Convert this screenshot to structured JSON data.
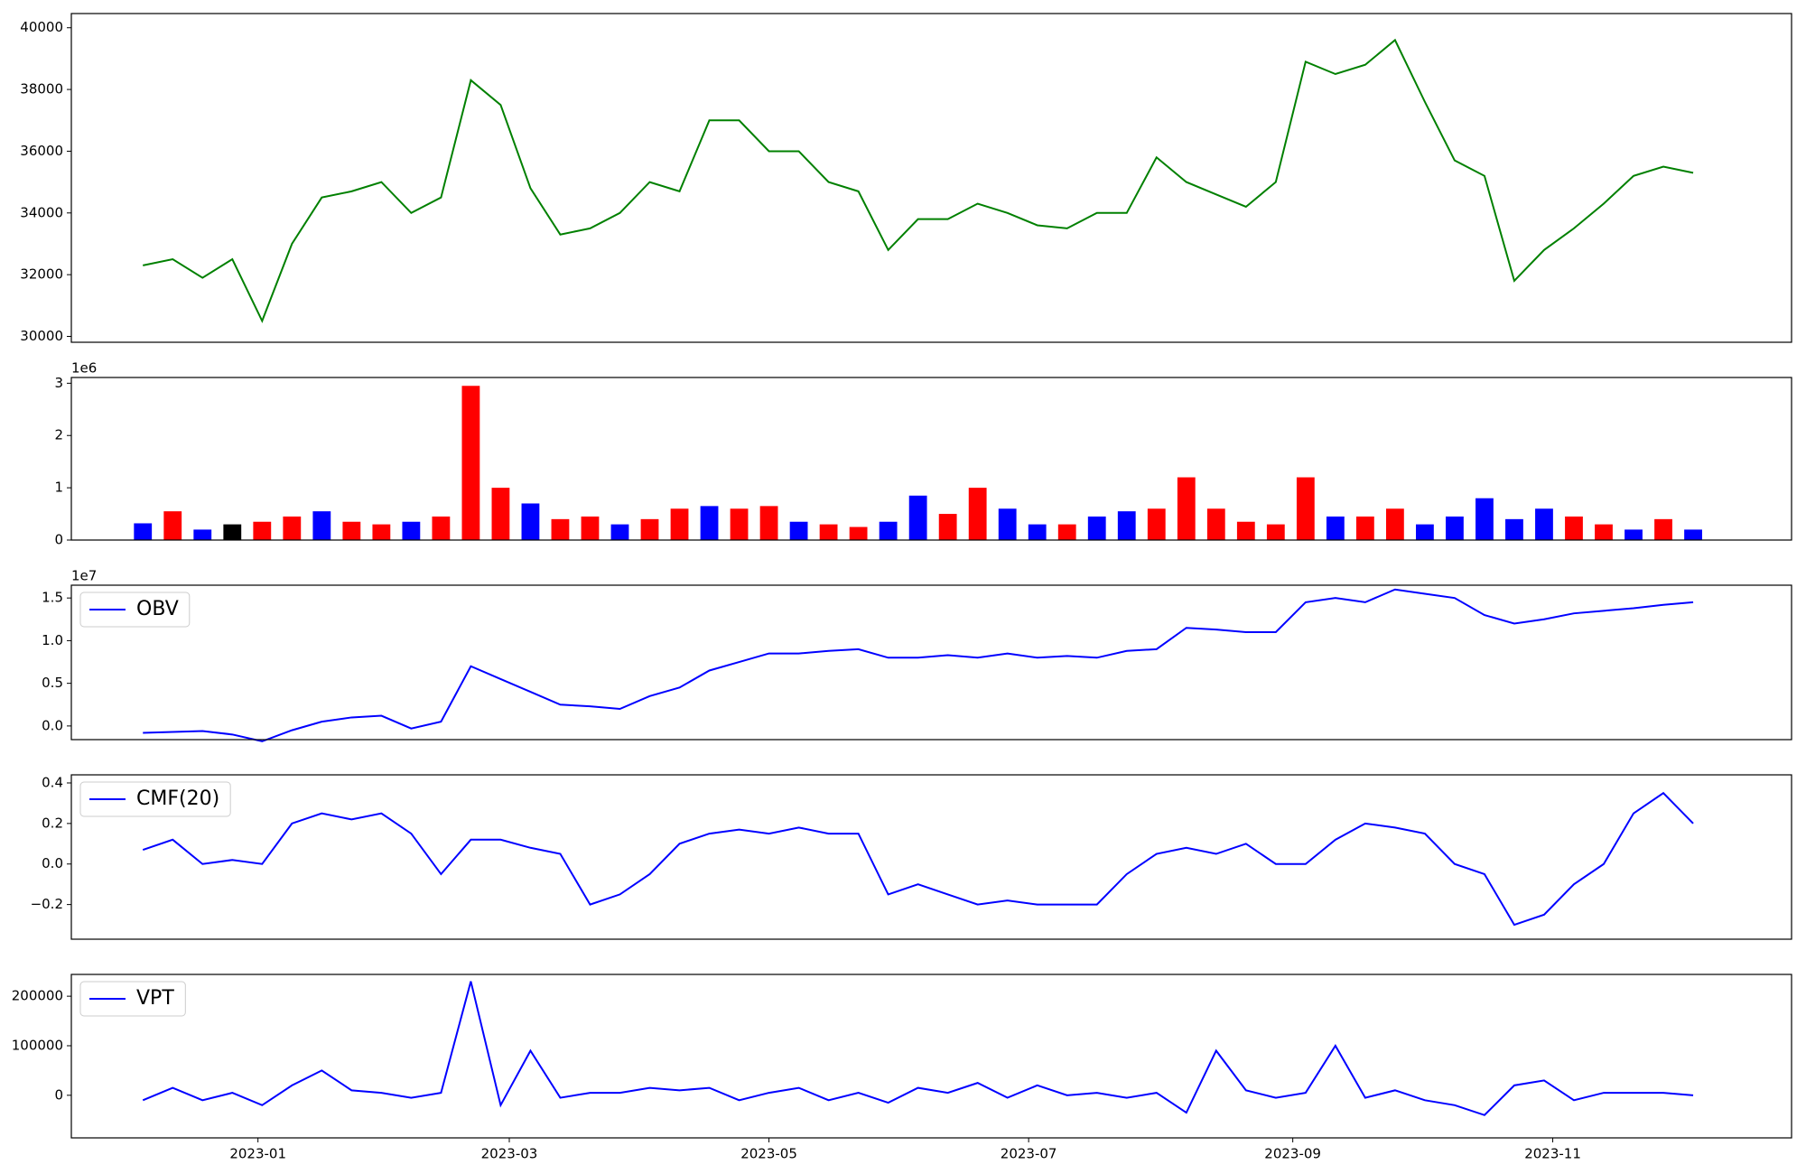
{
  "chart_data": [
    {
      "type": "line",
      "color": "#008000",
      "ylim": [
        29810,
        40460
      ],
      "xlim": [
        -2.4,
        55.3
      ],
      "yticks": [
        30000,
        32000,
        34000,
        36000,
        38000,
        40000
      ],
      "values": [
        32300,
        32500,
        31900,
        32500,
        30500,
        33000,
        34500,
        34700,
        35000,
        34000,
        34500,
        38300,
        37500,
        34800,
        33300,
        33500,
        34000,
        35000,
        34700,
        37000,
        37000,
        36000,
        36000,
        35000,
        34700,
        32800,
        33800,
        33800,
        34300,
        34000,
        33600,
        33500,
        34000,
        34000,
        35800,
        35000,
        34600,
        34200,
        35000,
        38900,
        38500,
        38800,
        39600,
        37600,
        35700,
        35200,
        31800,
        32800,
        33500,
        34300,
        35200,
        35500,
        35300
      ]
    },
    {
      "type": "bar",
      "ylim": [
        0,
        3110000
      ],
      "xlim": [
        -2.4,
        55.3
      ],
      "offset_label": "1e6",
      "yticks": [
        0,
        {
          "value": 1000000,
          "label": "1"
        },
        {
          "value": 2000000,
          "label": "2"
        },
        {
          "value": 3000000,
          "label": "3"
        }
      ],
      "values": [
        320000,
        550000,
        200000,
        300000,
        350000,
        450000,
        550000,
        350000,
        300000,
        350000,
        450000,
        2950000,
        1000000,
        700000,
        400000,
        450000,
        300000,
        400000,
        600000,
        650000,
        600000,
        650000,
        350000,
        300000,
        250000,
        350000,
        850000,
        500000,
        1000000,
        600000,
        300000,
        300000,
        450000,
        550000,
        600000,
        1200000,
        600000,
        350000,
        300000,
        1200000,
        450000,
        450000,
        600000,
        300000,
        450000,
        800000,
        400000,
        600000,
        450000,
        300000,
        200000,
        400000,
        200000
      ],
      "colors": [
        "blue",
        "red",
        "blue",
        "black",
        "red",
        "red",
        "blue",
        "red",
        "red",
        "blue",
        "red",
        "red",
        "red",
        "blue",
        "red",
        "red",
        "blue",
        "red",
        "red",
        "blue",
        "red",
        "red",
        "blue",
        "red",
        "red",
        "blue",
        "blue",
        "red",
        "red",
        "blue",
        "blue",
        "red",
        "blue",
        "blue",
        "red",
        "red",
        "red",
        "red",
        "red",
        "red",
        "blue",
        "red",
        "red",
        "blue",
        "blue",
        "blue",
        "blue",
        "blue",
        "red",
        "red",
        "blue",
        "red",
        "blue"
      ]
    },
    {
      "type": "line",
      "ylim": [
        -1600000,
        16500000
      ],
      "xlim": [
        -2.4,
        55.3
      ],
      "offset_label": "1e7",
      "legend": "upper left",
      "yticks": [
        {
          "value": 0,
          "label": "0.0"
        },
        {
          "value": 5000000,
          "label": "0.5"
        },
        {
          "value": 10000000,
          "label": "1.0"
        },
        {
          "value": 15000000,
          "label": "1.5"
        }
      ],
      "series": [
        {
          "name": "OBV",
          "color": "#0000ff",
          "values": [
            -800000,
            -700000,
            -600000,
            -1000000,
            -1800000,
            -500000,
            500000,
            1000000,
            1200000,
            -300000,
            500000,
            7000000,
            5500000,
            4000000,
            2500000,
            2300000,
            2000000,
            3500000,
            4500000,
            6500000,
            7500000,
            8500000,
            8500000,
            8800000,
            9000000,
            8000000,
            8000000,
            8300000,
            8000000,
            8500000,
            8000000,
            8200000,
            8000000,
            8800000,
            9000000,
            11500000,
            11300000,
            11000000,
            11000000,
            14500000,
            15000000,
            14500000,
            16000000,
            15500000,
            15000000,
            13000000,
            12000000,
            12500000,
            13200000,
            13500000,
            13800000,
            14200000,
            14500000
          ]
        }
      ]
    },
    {
      "type": "line",
      "ylim": [
        -0.371,
        0.44
      ],
      "xlim": [
        -2.4,
        55.3
      ],
      "legend": "upper left",
      "yticks": [
        {
          "value": -0.2,
          "label": "−0.2"
        },
        {
          "value": 0,
          "label": "0.0"
        },
        {
          "value": 0.2,
          "label": "0.2"
        },
        {
          "value": 0.4,
          "label": "0.4"
        }
      ],
      "series": [
        {
          "name": "CMF(20)",
          "color": "#0000ff",
          "values": [
            0.07,
            0.12,
            0.0,
            0.02,
            0.0,
            0.2,
            0.25,
            0.22,
            0.25,
            0.15,
            -0.05,
            0.12,
            0.12,
            0.08,
            0.05,
            -0.2,
            -0.15,
            -0.05,
            0.1,
            0.15,
            0.17,
            0.15,
            0.18,
            0.15,
            0.15,
            -0.15,
            -0.1,
            -0.15,
            -0.2,
            -0.18,
            -0.2,
            -0.2,
            -0.2,
            -0.05,
            0.05,
            0.08,
            0.05,
            0.1,
            0.0,
            0.0,
            0.12,
            0.2,
            0.18,
            0.15,
            0.0,
            -0.05,
            -0.3,
            -0.25,
            -0.1,
            0.0,
            0.25,
            0.35,
            0.2
          ]
        }
      ]
    },
    {
      "type": "line",
      "ylim": [
        -86000,
        244000
      ],
      "xlim": [
        -2.4,
        55.3
      ],
      "legend": "upper left",
      "yticks": [
        0,
        100000,
        200000
      ],
      "xticks": [
        {
          "value": 3.86,
          "label": "2023-01"
        },
        {
          "value": 12.29,
          "label": "2023-03"
        },
        {
          "value": 21.0,
          "label": "2023-05"
        },
        {
          "value": 29.71,
          "label": "2023-07"
        },
        {
          "value": 38.57,
          "label": "2023-09"
        },
        {
          "value": 47.29,
          "label": "2023-11"
        }
      ],
      "series": [
        {
          "name": "VPT",
          "color": "#0000ff",
          "values": [
            -10000,
            15000,
            -10000,
            5000,
            -20000,
            20000,
            50000,
            10000,
            5000,
            -5000,
            5000,
            230000,
            -20000,
            90000,
            -5000,
            5000,
            5000,
            15000,
            10000,
            15000,
            -10000,
            5000,
            15000,
            -10000,
            5000,
            -15000,
            15000,
            5000,
            25000,
            -5000,
            20000,
            0,
            5000,
            -5000,
            5000,
            -35000,
            90000,
            10000,
            -5000,
            5000,
            100000,
            -5000,
            10000,
            -10000,
            -20000,
            -40000,
            20000,
            30000,
            -10000,
            5000,
            5000,
            5000,
            0
          ]
        }
      ]
    }
  ]
}
